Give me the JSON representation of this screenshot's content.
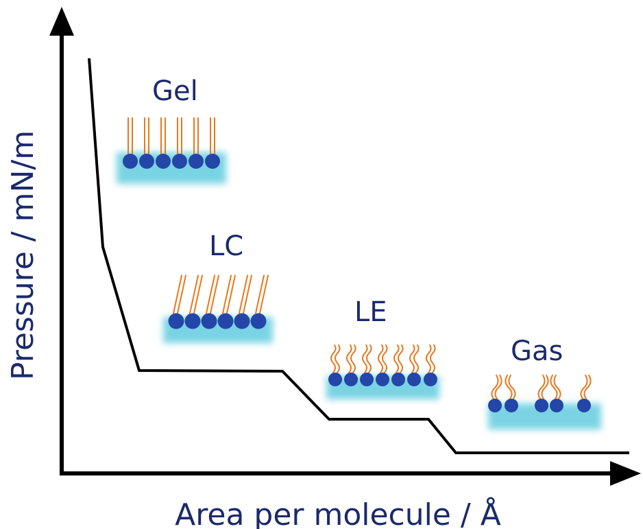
{
  "axes": {
    "x_label": "Area per molecule / Å",
    "y_label": "Pressure / mN/m"
  },
  "phases": [
    {
      "id": "gel",
      "label": "Gel",
      "tail_style": "straight-vertical",
      "molecule_count": 6
    },
    {
      "id": "lc",
      "label": "LC",
      "tail_style": "straight-tilted",
      "molecule_count": 6
    },
    {
      "id": "le",
      "label": "LE",
      "tail_style": "wavy",
      "molecule_count": 7
    },
    {
      "id": "gas",
      "label": "Gas",
      "tail_style": "wavy-sparse",
      "molecule_count": 5
    }
  ],
  "colors": {
    "axis": "#000000",
    "curve": "#000000",
    "text": "#1b2a6b",
    "head": "#2346a8",
    "tail": "#e8781e",
    "water": "#6ccfe0"
  }
}
